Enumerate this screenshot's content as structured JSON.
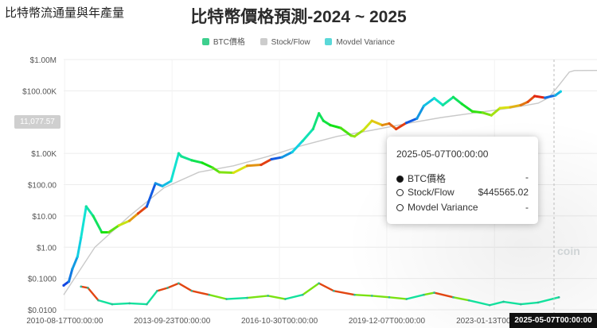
{
  "page_title": "比特幣流通量與年產量",
  "chart_title": "比特幣價格預測-2024 ~ 2025",
  "legend": [
    {
      "label": "BTC價格",
      "color": "#3ecf8e"
    },
    {
      "label": "Stock/Flow",
      "color": "#cccccc"
    },
    {
      "label": "Movdel Variance",
      "color": "#5ad8d8"
    }
  ],
  "price_marker": "11,077.57",
  "crosshair_label": "2025-05-07T00:00:00",
  "watermark": "coin",
  "tooltip": {
    "date": "2025-05-07T00:00:00",
    "rows": [
      {
        "label": "BTC價格",
        "value": "-",
        "filled": true
      },
      {
        "label": "Stock/Flow",
        "value": "$445565.02",
        "filled": false
      },
      {
        "label": "Movdel Variance",
        "value": "-",
        "filled": false
      }
    ]
  },
  "chart_data": {
    "type": "line",
    "title": "比特幣價格預測-2024 ~ 2025",
    "y_scale": "log",
    "ylim": [
      0.01,
      1000000
    ],
    "xlim": [
      2010.6,
      2026.0
    ],
    "grid": true,
    "legend_position": "top-center",
    "y_tick_labels": [
      "$1.00M",
      "$100.00K",
      "$1.00K",
      "$100.00",
      "$10.00",
      "$1.00",
      "$0.1000",
      "$0.0100"
    ],
    "y_tick_values": [
      1000000,
      100000,
      1000,
      100,
      10,
      1,
      0.1,
      0.01
    ],
    "x_tick_labels": [
      "2010-08-17T00:00:00",
      "2013-09-23T00:00:00",
      "2016-10-30T00:00:00",
      "2019-12-07T00:00:00",
      "2023-01-13T00:00:00"
    ],
    "x_tick_values": [
      2010.63,
      2013.73,
      2016.83,
      2019.93,
      2023.04
    ],
    "series": [
      {
        "name": "BTC價格",
        "x": [
          2010.6,
          2010.75,
          2010.85,
          2011.0,
          2011.1,
          2011.25,
          2011.45,
          2011.7,
          2011.9,
          2012.2,
          2012.5,
          2012.75,
          2013.0,
          2013.25,
          2013.45,
          2013.7,
          2013.92,
          2014.0,
          2014.3,
          2014.6,
          2014.9,
          2015.1,
          2015.5,
          2015.9,
          2016.3,
          2016.6,
          2016.9,
          2017.2,
          2017.5,
          2017.8,
          2017.97,
          2018.1,
          2018.3,
          2018.6,
          2018.9,
          2019.0,
          2019.25,
          2019.5,
          2019.8,
          2020.0,
          2020.2,
          2020.5,
          2020.8,
          2021.0,
          2021.3,
          2021.55,
          2021.85,
          2022.1,
          2022.4,
          2022.7,
          2022.95,
          2023.2,
          2023.5,
          2023.8,
          2024.0,
          2024.2,
          2024.5,
          2024.8,
          2024.95
        ],
        "y": [
          0.06,
          0.08,
          0.2,
          0.5,
          2,
          20,
          10,
          3,
          3,
          5,
          7,
          12,
          20,
          110,
          90,
          130,
          1000,
          800,
          600,
          500,
          350,
          250,
          240,
          400,
          430,
          650,
          750,
          1100,
          2500,
          6000,
          19000,
          11000,
          8000,
          6500,
          3700,
          3500,
          5500,
          11000,
          8000,
          9000,
          6000,
          9500,
          13000,
          33000,
          58000,
          35000,
          63000,
          38000,
          22000,
          20000,
          16500,
          28000,
          30000,
          35000,
          44000,
          68000,
          60000,
          72000,
          95000
        ]
      },
      {
        "name": "Stock/Flow",
        "x": [
          2010.6,
          2011.5,
          2012.5,
          2013.5,
          2014.5,
          2015.5,
          2016.5,
          2017.5,
          2018.5,
          2019.5,
          2020.5,
          2021.5,
          2022.5,
          2023.5,
          2024.3,
          2024.6,
          2024.9,
          2025.2,
          2025.35,
          2026.0
        ],
        "y": [
          0.03,
          1,
          10,
          80,
          250,
          400,
          800,
          1800,
          3500,
          5500,
          9000,
          14000,
          20000,
          28000,
          40000,
          60000,
          150000,
          400000,
          445565.02,
          450000
        ]
      },
      {
        "name": "Movdel Variance",
        "x": [
          2011.1,
          2011.3,
          2011.6,
          2012.0,
          2012.5,
          2013.0,
          2013.3,
          2013.6,
          2013.92,
          2014.3,
          2014.8,
          2015.3,
          2015.9,
          2016.5,
          2017.0,
          2017.5,
          2017.97,
          2018.4,
          2019.0,
          2019.5,
          2020.0,
          2020.5,
          2021.0,
          2021.3,
          2021.85,
          2022.3,
          2022.9,
          2023.3,
          2023.8,
          2024.3,
          2024.9
        ],
        "y": [
          0.055,
          0.05,
          0.02,
          0.015,
          0.016,
          0.015,
          0.04,
          0.05,
          0.07,
          0.04,
          0.03,
          0.022,
          0.024,
          0.028,
          0.022,
          0.03,
          0.07,
          0.04,
          0.03,
          0.028,
          0.025,
          0.022,
          0.03,
          0.035,
          0.025,
          0.02,
          0.014,
          0.018,
          0.015,
          0.017,
          0.025
        ]
      }
    ]
  }
}
